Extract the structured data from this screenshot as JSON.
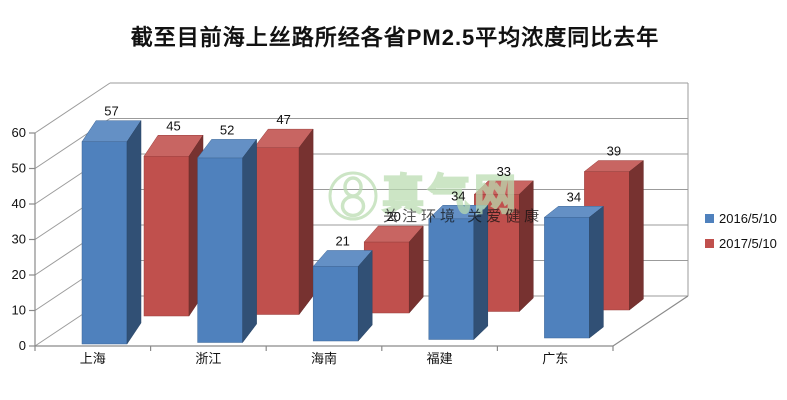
{
  "title": "截至目前海上丝路所经各省PM2.5平均浓度同比去年",
  "watermark": {
    "logo": "leaf-ribbon-8-icon",
    "brand": "真气网",
    "tagline": "关注环境 关爱健康",
    "color": "#b9dcb0"
  },
  "legend": {
    "position": "right",
    "items": [
      "2016/5/10",
      "2017/5/10"
    ]
  },
  "chart_data": {
    "type": "bar",
    "projection": "3d",
    "title": "截至目前海上丝路所经各省PM2.5平均浓度同比去年",
    "categories": [
      "上海",
      "浙江",
      "海南",
      "福建",
      "广东"
    ],
    "series": [
      {
        "name": "2016/5/10",
        "color": "#4F81BD",
        "values": [
          57,
          52,
          21,
          34,
          34
        ]
      },
      {
        "name": "2017/5/10",
        "color": "#C0504D",
        "values": [
          45,
          47,
          20,
          33,
          39
        ]
      }
    ],
    "xlabel": "",
    "ylabel": "",
    "ylim": [
      0,
      60
    ],
    "ytick_step": 10,
    "yticks": [
      0,
      10,
      20,
      30,
      40,
      50,
      60
    ],
    "grid": true,
    "value_labels": true,
    "legend_position": "right"
  }
}
